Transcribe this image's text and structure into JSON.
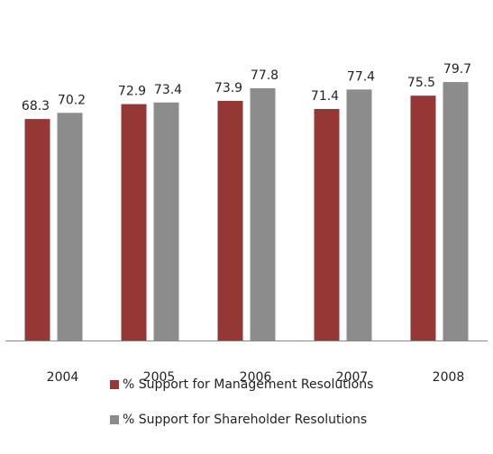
{
  "chart_data": {
    "type": "bar",
    "categories": [
      "2004",
      "2005",
      "2006",
      "2007",
      "2008"
    ],
    "series": [
      {
        "name": "% Support for Management Resolutions",
        "color": "#953735",
        "values": [
          68.3,
          72.9,
          73.9,
          71.4,
          75.5
        ]
      },
      {
        "name": "% Support for Shareholder Resolutions",
        "color": "#8c8c8c",
        "values": [
          70.2,
          73.4,
          77.8,
          77.4,
          79.7
        ]
      }
    ],
    "ylim": [
      0,
      90
    ]
  }
}
